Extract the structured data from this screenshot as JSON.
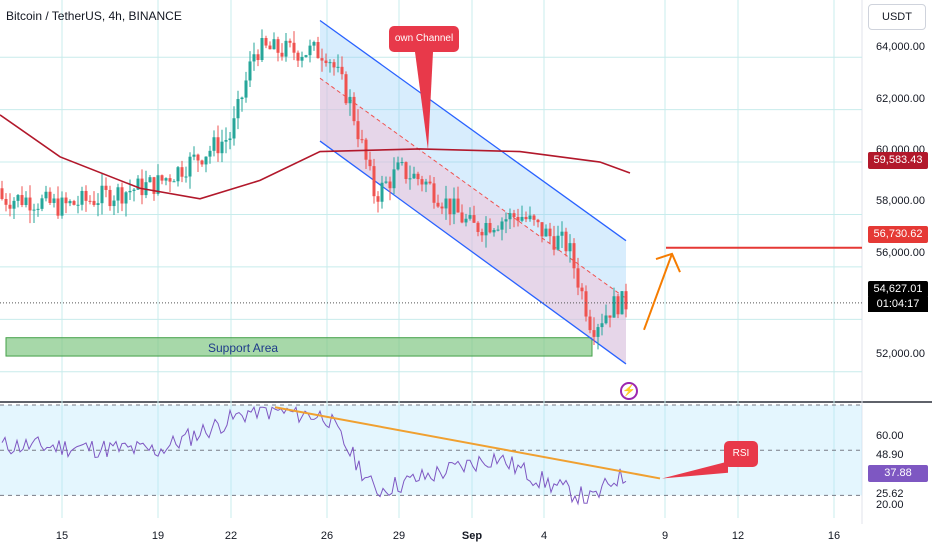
{
  "header": {
    "symbol_title": "Bitcoin / TetherUS, 4h, BINANCE",
    "currency": "USDT"
  },
  "price_axis": {
    "ticks": [
      "64,000.00",
      "62,000.00",
      "60,000.00",
      "58,000.00",
      "56,000.00",
      "52,000.00"
    ],
    "badges": {
      "ma_value": "59,583.43",
      "target_value": "56,730.62",
      "last_price": "54,627.01",
      "countdown": "01:04:17"
    }
  },
  "rsi_axis": {
    "ticks": [
      "60.00",
      "48.90",
      "25.62",
      "20.00"
    ],
    "current": "37.88"
  },
  "time_axis": {
    "labels": [
      "15",
      "19",
      "22",
      "26",
      "29",
      "Sep",
      "4",
      "9",
      "12",
      "16"
    ]
  },
  "annotations": {
    "channel_label": "own Channel",
    "support_label": "Support Area",
    "rsi_label": "RSI"
  },
  "colors": {
    "up": "#26a69a",
    "down": "#ef5350",
    "ma": "#b2182b",
    "channel": "#2962ff",
    "support": "#81c784",
    "rsi_line": "#7e57c2",
    "rsi_trend": "#f0a030",
    "callout": "#e8394a",
    "arrow": "#f57c00",
    "target": "#e53935"
  },
  "chart_data": [
    {
      "type": "candlestick",
      "symbol": "BTC/USDT",
      "timeframe": "4h",
      "xlabel": "",
      "ylabel": "",
      "ylim": [
        51000,
        65800
      ],
      "current_price": 54627.01,
      "moving_average_last": 59583.43,
      "target_level": 56730.62,
      "support_zone": [
        52600,
        53300
      ],
      "key_closes": [
        {
          "date": "Aug 13",
          "close": 58600
        },
        {
          "date": "Aug 15",
          "close": 58300
        },
        {
          "date": "Aug 19",
          "close": 59200
        },
        {
          "date": "Aug 22",
          "close": 61000
        },
        {
          "date": "Aug 23",
          "close": 64300
        },
        {
          "date": "Aug 26",
          "close": 64200
        },
        {
          "date": "Aug 27",
          "close": 62200
        },
        {
          "date": "Aug 28",
          "close": 58700
        },
        {
          "date": "Aug 29",
          "close": 59700
        },
        {
          "date": "Aug 30",
          "close": 59300
        },
        {
          "date": "Sep 1",
          "close": 57500
        },
        {
          "date": "Sep 3",
          "close": 58000
        },
        {
          "date": "Sep 4",
          "close": 57300
        },
        {
          "date": "Sep 5",
          "close": 56800
        },
        {
          "date": "Sep 6",
          "close": 53700
        },
        {
          "date": "Sep 7",
          "close": 54627
        }
      ]
    },
    {
      "type": "line",
      "name": "RSI",
      "ylim": [
        20,
        70
      ],
      "current": 37.88,
      "key_values": [
        {
          "date": "Aug 13",
          "value": 52
        },
        {
          "date": "Aug 19",
          "value": 50
        },
        {
          "date": "Aug 23",
          "value": 68
        },
        {
          "date": "Aug 26",
          "value": 65
        },
        {
          "date": "Aug 28",
          "value": 32
        },
        {
          "date": "Sep 2",
          "value": 47
        },
        {
          "date": "Sep 4",
          "value": 36
        },
        {
          "date": "Sep 6",
          "value": 28
        },
        {
          "date": "Sep 7",
          "value": 37.88
        }
      ]
    }
  ]
}
